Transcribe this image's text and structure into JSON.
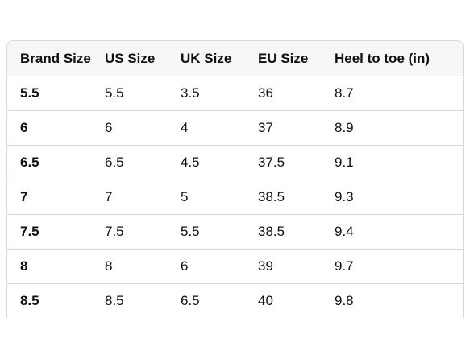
{
  "size_chart": {
    "headers": [
      "Brand Size",
      "US Size",
      "UK Size",
      "EU Size",
      "Heel to toe (in)"
    ],
    "rows": [
      [
        "5.5",
        "5.5",
        "3.5",
        "36",
        "8.7"
      ],
      [
        "6",
        "6",
        "4",
        "37",
        "8.9"
      ],
      [
        "6.5",
        "6.5",
        "4.5",
        "37.5",
        "9.1"
      ],
      [
        "7",
        "7",
        "5",
        "38.5",
        "9.3"
      ],
      [
        "7.5",
        "7.5",
        "5.5",
        "38.5",
        "9.4"
      ],
      [
        "8",
        "8",
        "6",
        "39",
        "9.7"
      ],
      [
        "8.5",
        "8.5",
        "6.5",
        "40",
        "9.8"
      ]
    ]
  }
}
